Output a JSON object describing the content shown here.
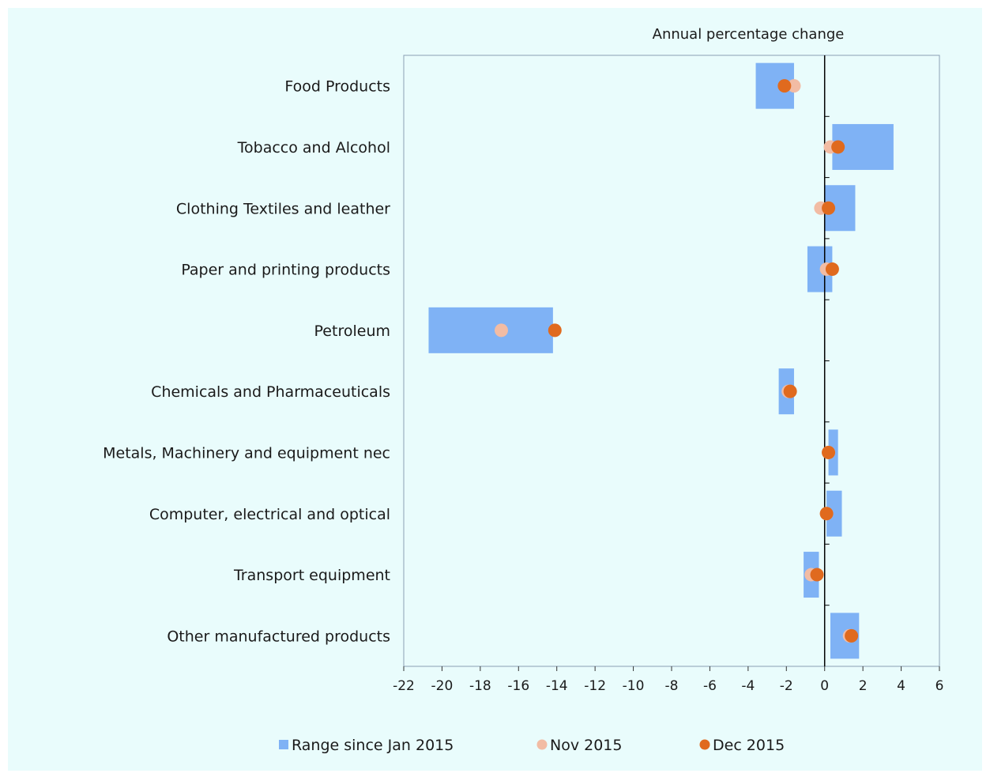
{
  "chart_data": {
    "type": "range-dot",
    "title": "",
    "xlabel": "Annual percentage change",
    "xlim": [
      -22,
      6
    ],
    "xticks": [
      -22,
      -20,
      -18,
      -16,
      -14,
      -12,
      -10,
      -8,
      -6,
      -4,
      -2,
      0,
      2,
      4,
      6
    ],
    "grid": false,
    "legend_position": "bottom",
    "categories": [
      "Food Products",
      "Tobacco and Alcohol",
      "Clothing Textiles and leather",
      "Paper and printing products",
      "Petroleum",
      "Chemicals and Pharmaceuticals",
      "Metals, Machinery and equipment nec",
      "Computer, electrical and optical",
      "Transport equipment",
      "Other manufactured products"
    ],
    "range": {
      "name": "Range since Jan 2015",
      "color": "#7fb2f5",
      "low": [
        -3.6,
        0.4,
        0.0,
        -0.9,
        -20.7,
        -2.4,
        0.2,
        0.1,
        -1.1,
        0.3
      ],
      "high": [
        -1.6,
        3.6,
        1.6,
        0.4,
        -14.2,
        -1.6,
        0.7,
        0.9,
        -0.3,
        1.8
      ]
    },
    "series": [
      {
        "name": "Nov 2015",
        "color": "#f2bca4",
        "values": [
          -1.6,
          0.3,
          -0.2,
          0.1,
          -16.9,
          -1.9,
          0.2,
          0.1,
          -0.7,
          1.3
        ]
      },
      {
        "name": "Dec 2015",
        "color": "#e06a1e",
        "values": [
          -2.1,
          0.7,
          0.2,
          0.4,
          -14.1,
          -1.8,
          0.2,
          0.1,
          -0.4,
          1.4
        ]
      }
    ]
  }
}
